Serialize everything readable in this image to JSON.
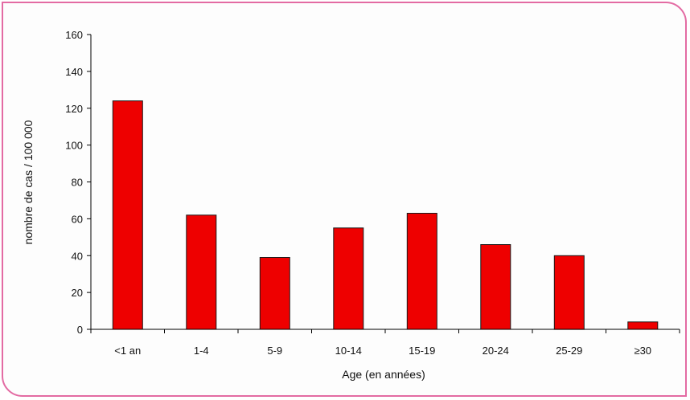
{
  "chart_data": {
    "type": "bar",
    "title": "",
    "xlabel": "Age (en années)",
    "ylabel": "nombre de cas / 100 000",
    "categories": [
      "<1 an",
      "1-4",
      "5-9",
      "10-14",
      "15-19",
      "20-24",
      "25-29",
      "≥30"
    ],
    "values": [
      124,
      62,
      39,
      55,
      63,
      46,
      40,
      4
    ],
    "ylim": [
      0,
      160
    ],
    "yticks": [
      0,
      20,
      40,
      60,
      80,
      100,
      120,
      140,
      160
    ],
    "grid": false,
    "legend": "none",
    "bar_color": "#ee0000",
    "bar_edge_color": "#1a1a1a"
  },
  "colors": {
    "frame_border": "#e36ba3",
    "axis": "#000000"
  }
}
